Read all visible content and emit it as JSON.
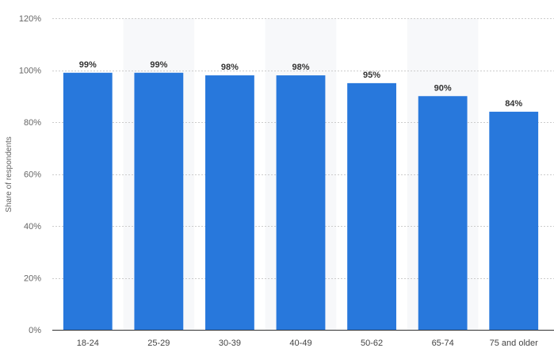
{
  "chart_data": {
    "type": "bar",
    "categories": [
      "18-24",
      "25-29",
      "30-39",
      "40-49",
      "50-62",
      "65-74",
      "75 and older"
    ],
    "values": [
      99,
      99,
      98,
      98,
      95,
      90,
      84
    ],
    "value_labels": [
      "99%",
      "99%",
      "98%",
      "98%",
      "95%",
      "90%",
      "84%"
    ],
    "title": "",
    "xlabel": "",
    "ylabel": "Share of respondents",
    "ylim": [
      0,
      120
    ],
    "yticks": [
      0,
      20,
      40,
      60,
      80,
      100,
      120
    ],
    "ytick_labels": [
      "0%",
      "20%",
      "40%",
      "60%",
      "80%",
      "100%",
      "120%"
    ],
    "grid": true,
    "bar_color": "#2878dc",
    "band_color": "#f7f8fa"
  }
}
